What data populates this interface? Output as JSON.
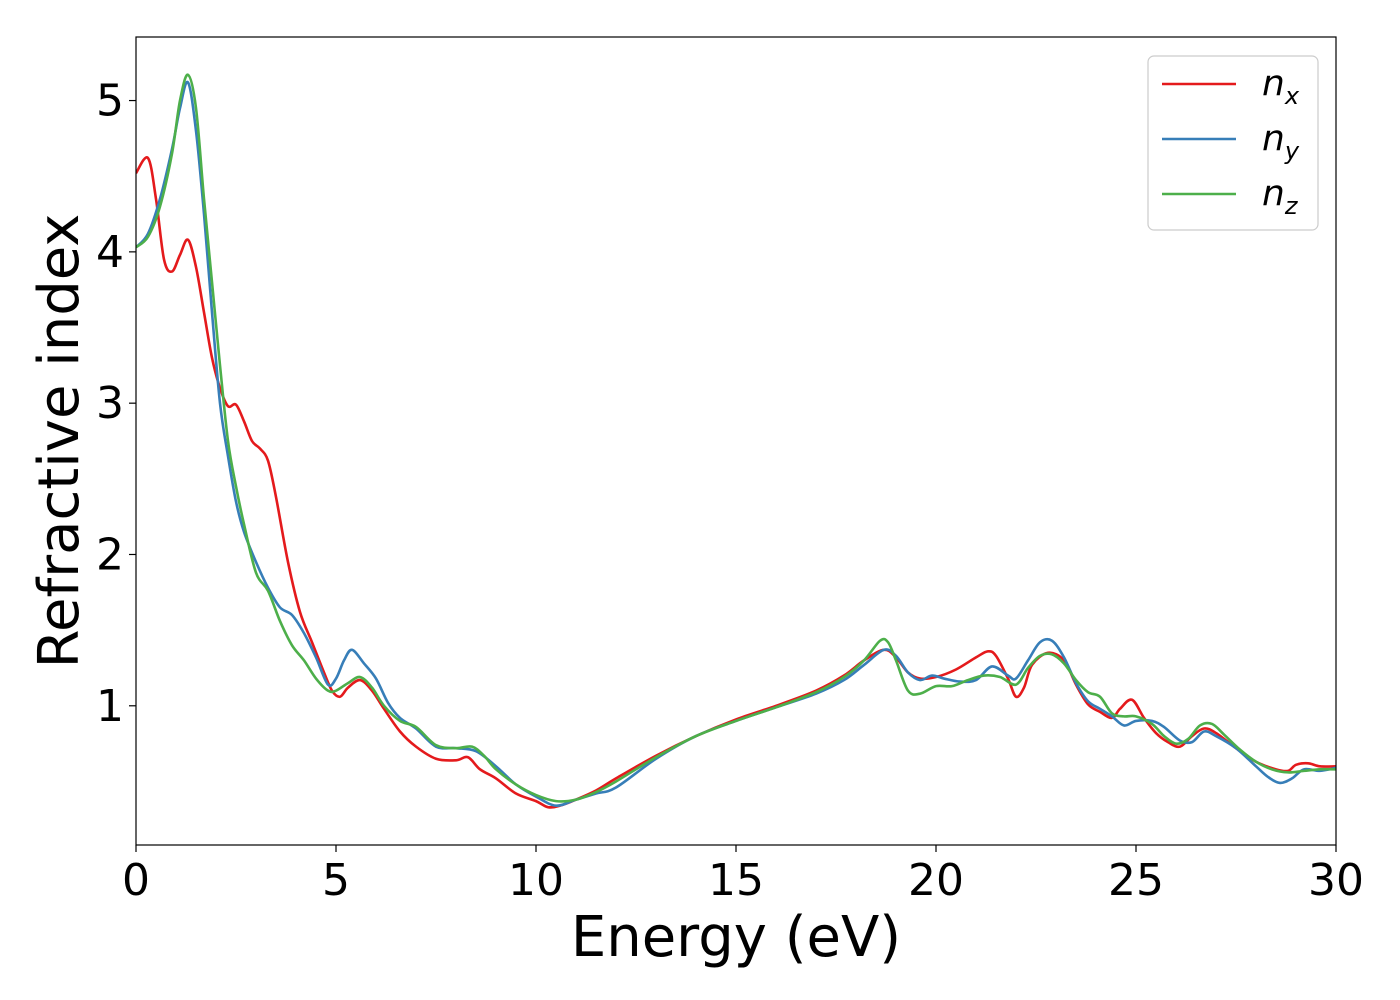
{
  "chart_data": {
    "type": "line",
    "title": "",
    "xlabel": "Energy (eV)",
    "ylabel": "Refractive index",
    "xlim": [
      0,
      30
    ],
    "ylim": [
      0.08,
      5.42
    ],
    "xticks": [
      0,
      5,
      10,
      15,
      20,
      25,
      30
    ],
    "yticks": [
      1,
      2,
      3,
      4,
      5
    ],
    "grid": false,
    "legend_position": "top-right",
    "series": [
      {
        "name": "n_x",
        "label_main": "n",
        "label_sub": "x",
        "color": "#e41a1c",
        "x": [
          0,
          0.3,
          0.5,
          0.7,
          0.9,
          1.1,
          1.3,
          1.5,
          1.7,
          1.9,
          2.1,
          2.3,
          2.5,
          2.7,
          2.9,
          3.1,
          3.3,
          3.5,
          3.8,
          4.1,
          4.4,
          4.7,
          4.9,
          5.1,
          5.3,
          5.6,
          5.9,
          6.2,
          6.6,
          7.0,
          7.5,
          8.0,
          8.3,
          8.6,
          9.0,
          9.5,
          10.0,
          10.3,
          10.6,
          11.0,
          11.5,
          12.0,
          13.0,
          14.0,
          15.0,
          16.0,
          17.0,
          17.7,
          18.2,
          18.7,
          19.0,
          19.3,
          19.6,
          20.0,
          20.5,
          21.0,
          21.3,
          21.5,
          21.8,
          22.0,
          22.2,
          22.4,
          22.8,
          23.2,
          23.5,
          23.8,
          24.1,
          24.4,
          24.6,
          24.9,
          25.2,
          25.5,
          25.8,
          26.1,
          26.4,
          26.7,
          27.0,
          27.5,
          28.0,
          28.5,
          28.8,
          29.0,
          29.3,
          29.6,
          30.0
        ],
        "y": [
          4.52,
          4.62,
          4.35,
          3.95,
          3.87,
          3.98,
          4.08,
          3.9,
          3.6,
          3.3,
          3.1,
          2.98,
          2.99,
          2.88,
          2.75,
          2.7,
          2.62,
          2.38,
          1.95,
          1.62,
          1.42,
          1.22,
          1.1,
          1.06,
          1.12,
          1.17,
          1.1,
          0.98,
          0.83,
          0.73,
          0.65,
          0.64,
          0.66,
          0.58,
          0.52,
          0.42,
          0.37,
          0.33,
          0.34,
          0.38,
          0.44,
          0.52,
          0.67,
          0.8,
          0.91,
          1.0,
          1.1,
          1.2,
          1.3,
          1.37,
          1.32,
          1.22,
          1.18,
          1.19,
          1.24,
          1.32,
          1.36,
          1.33,
          1.18,
          1.06,
          1.12,
          1.27,
          1.35,
          1.3,
          1.14,
          1.01,
          0.96,
          0.92,
          0.98,
          1.04,
          0.92,
          0.82,
          0.76,
          0.73,
          0.8,
          0.85,
          0.82,
          0.72,
          0.63,
          0.58,
          0.57,
          0.61,
          0.62,
          0.6,
          0.6
        ]
      },
      {
        "name": "n_y",
        "label_main": "n",
        "label_sub": "y",
        "color": "#377eb8",
        "x": [
          0,
          0.3,
          0.6,
          0.9,
          1.1,
          1.3,
          1.5,
          1.7,
          1.9,
          2.1,
          2.3,
          2.5,
          2.7,
          3.0,
          3.3,
          3.6,
          3.9,
          4.2,
          4.5,
          4.8,
          5.0,
          5.2,
          5.4,
          5.7,
          6.0,
          6.3,
          6.6,
          7.0,
          7.5,
          8.0,
          8.5,
          9.0,
          9.5,
          10.0,
          10.5,
          11.0,
          11.5,
          12.0,
          13.0,
          14.0,
          15.0,
          16.0,
          17.0,
          17.7,
          18.2,
          18.7,
          19.0,
          19.3,
          19.6,
          19.9,
          20.2,
          20.6,
          21.0,
          21.4,
          21.8,
          22.0,
          22.3,
          22.6,
          22.9,
          23.2,
          23.5,
          23.8,
          24.1,
          24.4,
          24.7,
          25.0,
          25.4,
          25.7,
          26.1,
          26.4,
          26.7,
          27.0,
          27.5,
          28.0,
          28.3,
          28.6,
          28.9,
          29.2,
          29.6,
          30.0
        ],
        "y": [
          4.03,
          4.12,
          4.35,
          4.68,
          4.95,
          5.12,
          4.8,
          4.25,
          3.6,
          3.0,
          2.65,
          2.35,
          2.15,
          1.95,
          1.78,
          1.65,
          1.6,
          1.48,
          1.32,
          1.14,
          1.18,
          1.3,
          1.37,
          1.28,
          1.18,
          1.02,
          0.92,
          0.85,
          0.73,
          0.72,
          0.7,
          0.6,
          0.48,
          0.4,
          0.34,
          0.38,
          0.42,
          0.46,
          0.65,
          0.8,
          0.9,
          0.99,
          1.08,
          1.17,
          1.27,
          1.37,
          1.33,
          1.22,
          1.17,
          1.2,
          1.18,
          1.16,
          1.17,
          1.26,
          1.2,
          1.18,
          1.3,
          1.42,
          1.43,
          1.32,
          1.15,
          1.03,
          0.98,
          0.93,
          0.87,
          0.9,
          0.9,
          0.86,
          0.77,
          0.76,
          0.83,
          0.8,
          0.72,
          0.6,
          0.53,
          0.49,
          0.52,
          0.58,
          0.57,
          0.59
        ]
      },
      {
        "name": "n_z",
        "label_main": "n",
        "label_sub": "z",
        "color": "#4daf4a",
        "x": [
          0,
          0.3,
          0.6,
          0.9,
          1.1,
          1.3,
          1.5,
          1.7,
          1.9,
          2.1,
          2.3,
          2.5,
          2.7,
          3.0,
          3.3,
          3.6,
          3.9,
          4.2,
          4.5,
          4.8,
          5.0,
          5.3,
          5.6,
          5.9,
          6.2,
          6.6,
          7.0,
          7.5,
          8.0,
          8.4,
          8.7,
          9.0,
          9.5,
          10.0,
          10.5,
          11.0,
          11.5,
          12.0,
          13.0,
          14.0,
          15.0,
          16.0,
          17.0,
          17.7,
          18.2,
          18.6,
          18.8,
          19.0,
          19.3,
          19.6,
          20.0,
          20.4,
          20.8,
          21.2,
          21.6,
          22.0,
          22.3,
          22.6,
          22.9,
          23.2,
          23.5,
          23.8,
          24.1,
          24.4,
          24.7,
          25.0,
          25.4,
          25.7,
          26.0,
          26.3,
          26.6,
          26.9,
          27.2,
          27.6,
          28.0,
          28.4,
          28.8,
          29.2,
          29.6,
          30.0
        ],
        "y": [
          4.03,
          4.1,
          4.3,
          4.65,
          5.0,
          5.17,
          4.95,
          4.35,
          3.8,
          3.25,
          2.75,
          2.45,
          2.2,
          1.88,
          1.76,
          1.56,
          1.4,
          1.3,
          1.18,
          1.1,
          1.1,
          1.15,
          1.19,
          1.12,
          1.0,
          0.9,
          0.86,
          0.74,
          0.72,
          0.73,
          0.67,
          0.58,
          0.48,
          0.41,
          0.37,
          0.38,
          0.43,
          0.5,
          0.66,
          0.8,
          0.9,
          0.99,
          1.09,
          1.19,
          1.3,
          1.43,
          1.42,
          1.3,
          1.1,
          1.08,
          1.13,
          1.13,
          1.17,
          1.2,
          1.19,
          1.14,
          1.25,
          1.33,
          1.34,
          1.28,
          1.17,
          1.09,
          1.06,
          0.95,
          0.93,
          0.93,
          0.88,
          0.8,
          0.75,
          0.78,
          0.87,
          0.88,
          0.81,
          0.71,
          0.63,
          0.58,
          0.56,
          0.57,
          0.58,
          0.58
        ]
      }
    ]
  }
}
